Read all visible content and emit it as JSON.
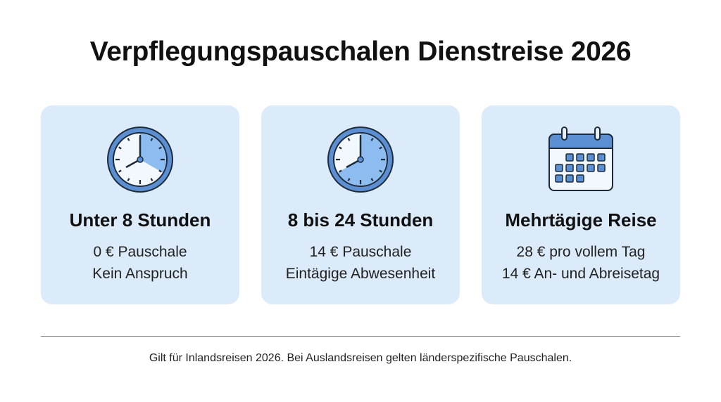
{
  "title": "Verpflegungspauschalen Dienstreise 2026",
  "colors": {
    "card_bg": "#dcebfa",
    "accent": "#5b8fd1",
    "fill": "#8cbcf0"
  },
  "cards": [
    {
      "icon": "clock-icon",
      "heading": "Unter 8 Stunden",
      "line1": "0 € Pauschale",
      "line2": "Kein Anspruch",
      "filled_fraction_of_clock": 0.333
    },
    {
      "icon": "clock-icon",
      "heading": "8 bis 24 Stunden",
      "line1": "14 € Pauschale",
      "line2": "Eintägige Abwesenheit",
      "filled_fraction_of_clock": 0.667
    },
    {
      "icon": "calendar-icon",
      "heading": "Mehrtägige Reise",
      "line1": "28 € pro vollem Tag",
      "line2": "14 € An- und Abreisetag"
    }
  ],
  "footer": "Gilt für Inlandsreisen 2026. Bei Auslandsreisen gelten länderspezifische Pauschalen."
}
